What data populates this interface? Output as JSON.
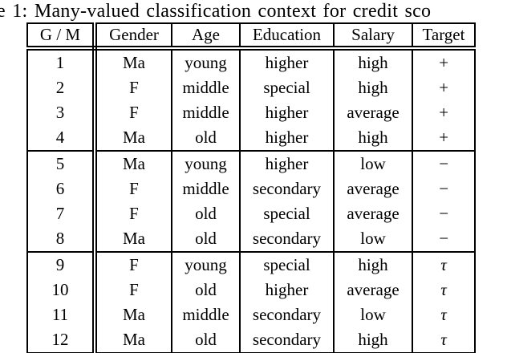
{
  "caption": "e 1: Many-valued classification context for credit sco",
  "table": {
    "columns": [
      "G / M",
      "Gender",
      "Age",
      "Education",
      "Salary",
      "Target"
    ],
    "rows": [
      [
        "1",
        "Ma",
        "young",
        "higher",
        "high",
        "+"
      ],
      [
        "2",
        "F",
        "middle",
        "special",
        "high",
        "+"
      ],
      [
        "3",
        "F",
        "middle",
        "higher",
        "average",
        "+"
      ],
      [
        "4",
        "Ma",
        "old",
        "higher",
        "high",
        "+"
      ],
      [
        "5",
        "Ma",
        "young",
        "higher",
        "low",
        "−"
      ],
      [
        "6",
        "F",
        "middle",
        "secondary",
        "average",
        "−"
      ],
      [
        "7",
        "F",
        "old",
        "special",
        "average",
        "−"
      ],
      [
        "8",
        "Ma",
        "old",
        "secondary",
        "low",
        "−"
      ],
      [
        "9",
        "F",
        "young",
        "special",
        "high",
        "τ"
      ],
      [
        "10",
        "F",
        "old",
        "higher",
        "average",
        "τ"
      ],
      [
        "11",
        "Ma",
        "middle",
        "secondary",
        "low",
        "τ"
      ],
      [
        "12",
        "Ma",
        "old",
        "secondary",
        "high",
        "τ"
      ]
    ]
  },
  "colors": {
    "text": "#000000",
    "background": "#ffffff",
    "border": "#000000"
  }
}
